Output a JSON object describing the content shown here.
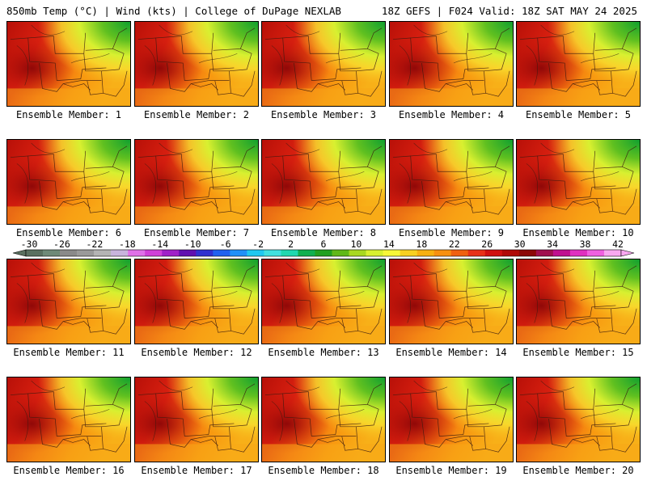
{
  "header": {
    "left_title": "850mb Temp (°C) | Wind (kts) | College of DuPage NEXLAB",
    "right_title": "18Z GEFS | F024 Valid: 18Z SAT MAY 24 2025"
  },
  "members": [
    {
      "label": "Ensemble Member: 1"
    },
    {
      "label": "Ensemble Member: 2"
    },
    {
      "label": "Ensemble Member: 3"
    },
    {
      "label": "Ensemble Member: 4"
    },
    {
      "label": "Ensemble Member: 5"
    },
    {
      "label": "Ensemble Member: 6"
    },
    {
      "label": "Ensemble Member: 7"
    },
    {
      "label": "Ensemble Member: 8"
    },
    {
      "label": "Ensemble Member: 9"
    },
    {
      "label": "Ensemble Member: 10"
    },
    {
      "label": "Ensemble Member: 11"
    },
    {
      "label": "Ensemble Member: 12"
    },
    {
      "label": "Ensemble Member: 13"
    },
    {
      "label": "Ensemble Member: 14"
    },
    {
      "label": "Ensemble Member: 15"
    },
    {
      "label": "Ensemble Member: 16"
    },
    {
      "label": "Ensemble Member: 17"
    },
    {
      "label": "Ensemble Member: 18"
    },
    {
      "label": "Ensemble Member: 19"
    },
    {
      "label": "Ensemble Member: 20"
    }
  ],
  "colorbar": {
    "labels": [
      "-30",
      "-26",
      "-22",
      "-18",
      "-14",
      "-10",
      "-6",
      "-2",
      "2",
      "6",
      "10",
      "14",
      "18",
      "22",
      "26",
      "30",
      "34",
      "38",
      "42"
    ],
    "colors": [
      "#5a7060",
      "#6e8a78",
      "#8a8a8a",
      "#9a9a9a",
      "#b4b4b4",
      "#c8b4dc",
      "#e070e8",
      "#d040d8",
      "#a020c8",
      "#6010b0",
      "#3030d0",
      "#2060f0",
      "#2090f8",
      "#20c8f0",
      "#40e0e0",
      "#20d8b0",
      "#10b050",
      "#20a020",
      "#60b818",
      "#a8d820",
      "#d8f030",
      "#f8f838",
      "#f8d020",
      "#f8b010",
      "#f89010",
      "#f06010",
      "#e83018",
      "#d01010",
      "#b00808",
      "#8c0808",
      "#a01050",
      "#c01090",
      "#e030c0",
      "#f060e0",
      "#f8a8f0"
    ]
  }
}
